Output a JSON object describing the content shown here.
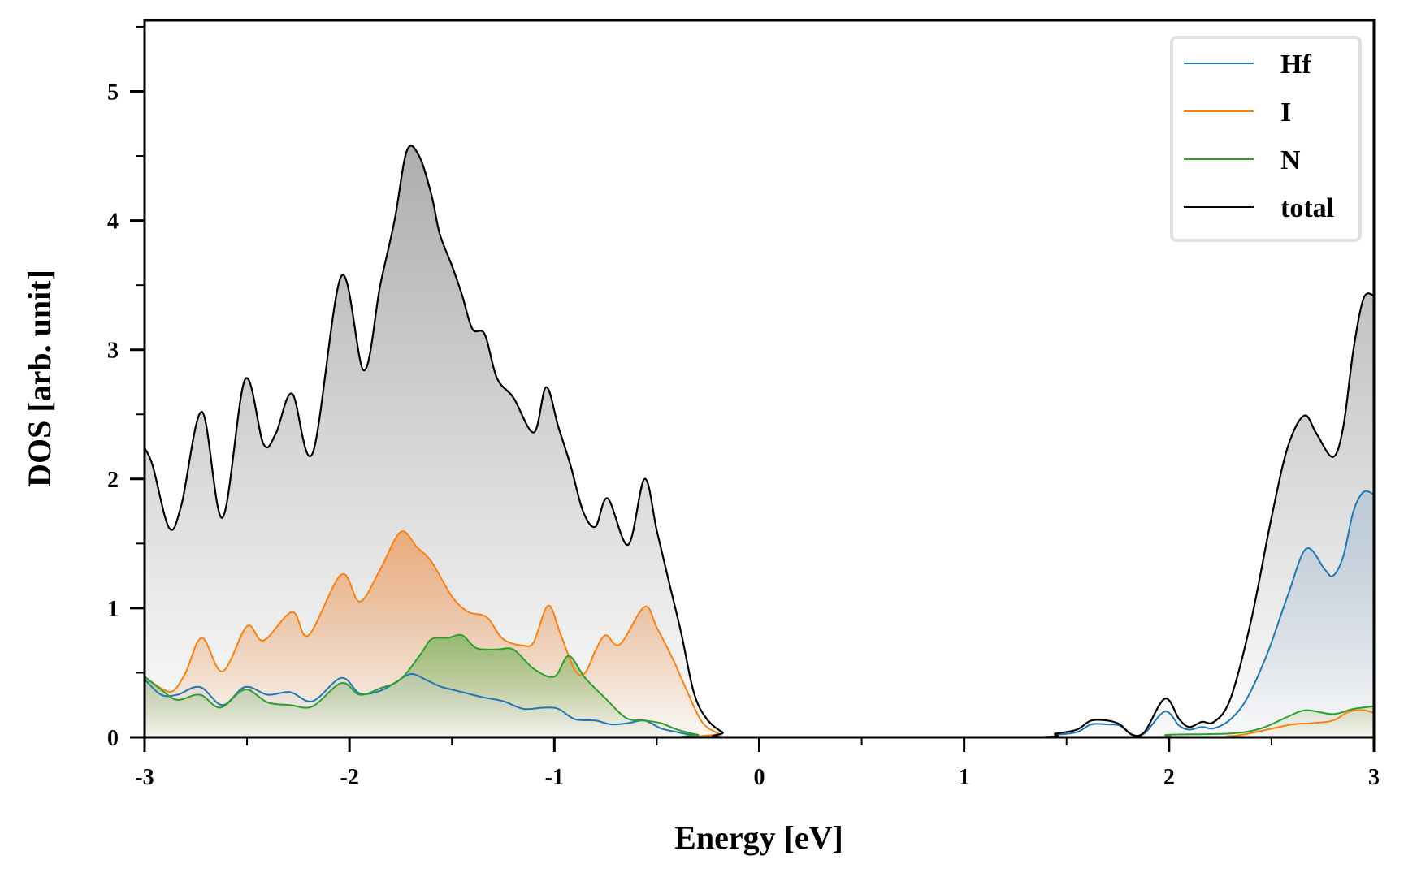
{
  "chart_data": {
    "type": "area",
    "title": "",
    "xlabel": "Energy [eV]",
    "ylabel": "DOS [arb. unit]",
    "xlim": [
      -3,
      3
    ],
    "ylim": [
      0,
      5.55
    ],
    "xticks": [
      -3,
      -2,
      -1,
      0,
      1,
      2,
      3
    ],
    "xtick_labels": [
      "-3",
      "-2",
      "-1",
      "0",
      "1",
      "2",
      "3"
    ],
    "xminor_ticks": [
      -2.5,
      -1.5,
      -0.5,
      0.5,
      1.5,
      2.5
    ],
    "yticks": [
      0,
      1,
      2,
      3,
      4,
      5
    ],
    "ytick_labels": [
      "0",
      "1",
      "2",
      "3",
      "4",
      "5"
    ],
    "yminor_ticks": [
      0.5,
      1.5,
      2.5,
      3.5,
      4.5,
      5.5
    ],
    "grid": false,
    "legend_position": "top-right",
    "series": [
      {
        "name": "Hf",
        "color": "#1f77b4",
        "fill": "#b8c8d8",
        "points": [
          [
            -3.0,
            0.45
          ],
          [
            -2.92,
            0.33
          ],
          [
            -2.84,
            0.33
          ],
          [
            -2.73,
            0.39
          ],
          [
            -2.62,
            0.25
          ],
          [
            -2.51,
            0.39
          ],
          [
            -2.4,
            0.33
          ],
          [
            -2.29,
            0.35
          ],
          [
            -2.18,
            0.28
          ],
          [
            -2.04,
            0.46
          ],
          [
            -1.95,
            0.34
          ],
          [
            -1.85,
            0.36
          ],
          [
            -1.78,
            0.42
          ],
          [
            -1.7,
            0.49
          ],
          [
            -1.62,
            0.44
          ],
          [
            -1.55,
            0.39
          ],
          [
            -1.45,
            0.35
          ],
          [
            -1.35,
            0.31
          ],
          [
            -1.25,
            0.28
          ],
          [
            -1.15,
            0.22
          ],
          [
            -1.05,
            0.23
          ],
          [
            -0.98,
            0.22
          ],
          [
            -0.9,
            0.14
          ],
          [
            -0.8,
            0.13
          ],
          [
            -0.72,
            0.1
          ],
          [
            -0.64,
            0.11
          ],
          [
            -0.56,
            0.13
          ],
          [
            -0.48,
            0.07
          ],
          [
            -0.4,
            0.04
          ],
          [
            -0.3,
            0.01
          ],
          [
            -0.2,
            0.0
          ],
          [
            1.3,
            0.0
          ],
          [
            1.45,
            0.02
          ],
          [
            1.55,
            0.04
          ],
          [
            1.62,
            0.1
          ],
          [
            1.7,
            0.1
          ],
          [
            1.76,
            0.09
          ],
          [
            1.82,
            0.02
          ],
          [
            1.88,
            0.03
          ],
          [
            1.98,
            0.2
          ],
          [
            2.05,
            0.09
          ],
          [
            2.1,
            0.06
          ],
          [
            2.16,
            0.08
          ],
          [
            2.22,
            0.07
          ],
          [
            2.3,
            0.14
          ],
          [
            2.38,
            0.3
          ],
          [
            2.48,
            0.65
          ],
          [
            2.58,
            1.1
          ],
          [
            2.67,
            1.46
          ],
          [
            2.76,
            1.3
          ],
          [
            2.8,
            1.25
          ],
          [
            2.85,
            1.4
          ],
          [
            2.9,
            1.75
          ],
          [
            2.95,
            1.9
          ],
          [
            3.0,
            1.88
          ]
        ]
      },
      {
        "name": "I",
        "color": "#ff7f0e",
        "fill": "#eca670",
        "points": [
          [
            -3.0,
            0.47
          ],
          [
            -2.92,
            0.38
          ],
          [
            -2.86,
            0.36
          ],
          [
            -2.8,
            0.5
          ],
          [
            -2.72,
            0.77
          ],
          [
            -2.62,
            0.51
          ],
          [
            -2.5,
            0.86
          ],
          [
            -2.42,
            0.75
          ],
          [
            -2.28,
            0.97
          ],
          [
            -2.2,
            0.79
          ],
          [
            -2.04,
            1.26
          ],
          [
            -1.95,
            1.05
          ],
          [
            -1.85,
            1.3
          ],
          [
            -1.75,
            1.59
          ],
          [
            -1.67,
            1.47
          ],
          [
            -1.6,
            1.36
          ],
          [
            -1.5,
            1.09
          ],
          [
            -1.42,
            0.97
          ],
          [
            -1.33,
            0.93
          ],
          [
            -1.25,
            0.76
          ],
          [
            -1.15,
            0.71
          ],
          [
            -1.1,
            0.74
          ],
          [
            -1.03,
            1.02
          ],
          [
            -0.97,
            0.8
          ],
          [
            -0.9,
            0.52
          ],
          [
            -0.85,
            0.5
          ],
          [
            -0.8,
            0.67
          ],
          [
            -0.75,
            0.79
          ],
          [
            -0.68,
            0.72
          ],
          [
            -0.56,
            1.01
          ],
          [
            -0.5,
            0.85
          ],
          [
            -0.42,
            0.6
          ],
          [
            -0.35,
            0.35
          ],
          [
            -0.28,
            0.12
          ],
          [
            -0.2,
            0.03
          ],
          [
            -0.12,
            0.0
          ],
          [
            2.0,
            0.0
          ],
          [
            2.3,
            0.01
          ],
          [
            2.45,
            0.05
          ],
          [
            2.6,
            0.1
          ],
          [
            2.7,
            0.11
          ],
          [
            2.8,
            0.13
          ],
          [
            2.88,
            0.2
          ],
          [
            2.95,
            0.21
          ],
          [
            3.0,
            0.19
          ]
        ]
      },
      {
        "name": "N",
        "color": "#2ca02c",
        "fill": "#8bb86a",
        "points": [
          [
            -3.0,
            0.47
          ],
          [
            -2.92,
            0.37
          ],
          [
            -2.84,
            0.29
          ],
          [
            -2.73,
            0.33
          ],
          [
            -2.63,
            0.23
          ],
          [
            -2.51,
            0.37
          ],
          [
            -2.4,
            0.27
          ],
          [
            -2.29,
            0.25
          ],
          [
            -2.18,
            0.24
          ],
          [
            -2.04,
            0.42
          ],
          [
            -1.95,
            0.33
          ],
          [
            -1.85,
            0.38
          ],
          [
            -1.75,
            0.45
          ],
          [
            -1.65,
            0.65
          ],
          [
            -1.6,
            0.76
          ],
          [
            -1.52,
            0.77
          ],
          [
            -1.45,
            0.79
          ],
          [
            -1.38,
            0.69
          ],
          [
            -1.28,
            0.68
          ],
          [
            -1.2,
            0.68
          ],
          [
            -1.1,
            0.53
          ],
          [
            -1.0,
            0.47
          ],
          [
            -0.93,
            0.63
          ],
          [
            -0.85,
            0.46
          ],
          [
            -0.75,
            0.3
          ],
          [
            -0.65,
            0.15
          ],
          [
            -0.56,
            0.13
          ],
          [
            -0.48,
            0.11
          ],
          [
            -0.4,
            0.06
          ],
          [
            -0.3,
            0.02
          ],
          [
            -0.2,
            0.0
          ],
          [
            1.8,
            0.0
          ],
          [
            2.0,
            0.02
          ],
          [
            2.3,
            0.03
          ],
          [
            2.45,
            0.07
          ],
          [
            2.58,
            0.16
          ],
          [
            2.67,
            0.21
          ],
          [
            2.8,
            0.18
          ],
          [
            2.9,
            0.22
          ],
          [
            3.0,
            0.24
          ]
        ]
      },
      {
        "name": "total",
        "color": "#000000",
        "fill": "#aaaaaa",
        "points": [
          [
            -3.0,
            2.24
          ],
          [
            -2.96,
            2.1
          ],
          [
            -2.88,
            1.62
          ],
          [
            -2.82,
            1.8
          ],
          [
            -2.72,
            2.52
          ],
          [
            -2.62,
            1.7
          ],
          [
            -2.51,
            2.77
          ],
          [
            -2.42,
            2.27
          ],
          [
            -2.36,
            2.35
          ],
          [
            -2.28,
            2.66
          ],
          [
            -2.18,
            2.2
          ],
          [
            -2.04,
            3.57
          ],
          [
            -1.93,
            2.84
          ],
          [
            -1.85,
            3.5
          ],
          [
            -1.78,
            4.0
          ],
          [
            -1.72,
            4.54
          ],
          [
            -1.66,
            4.5
          ],
          [
            -1.6,
            4.2
          ],
          [
            -1.56,
            3.9
          ],
          [
            -1.5,
            3.65
          ],
          [
            -1.45,
            3.42
          ],
          [
            -1.4,
            3.16
          ],
          [
            -1.34,
            3.12
          ],
          [
            -1.28,
            2.78
          ],
          [
            -1.2,
            2.63
          ],
          [
            -1.1,
            2.36
          ],
          [
            -1.04,
            2.71
          ],
          [
            -0.98,
            2.4
          ],
          [
            -0.92,
            2.1
          ],
          [
            -0.86,
            1.75
          ],
          [
            -0.8,
            1.63
          ],
          [
            -0.74,
            1.85
          ],
          [
            -0.64,
            1.49
          ],
          [
            -0.56,
            2.0
          ],
          [
            -0.5,
            1.6
          ],
          [
            -0.44,
            1.2
          ],
          [
            -0.38,
            0.8
          ],
          [
            -0.32,
            0.35
          ],
          [
            -0.26,
            0.15
          ],
          [
            -0.18,
            0.04
          ],
          [
            -0.1,
            0.0
          ],
          [
            1.3,
            0.0
          ],
          [
            1.45,
            0.03
          ],
          [
            1.55,
            0.06
          ],
          [
            1.62,
            0.13
          ],
          [
            1.7,
            0.13
          ],
          [
            1.76,
            0.1
          ],
          [
            1.82,
            0.02
          ],
          [
            1.88,
            0.04
          ],
          [
            1.98,
            0.3
          ],
          [
            2.05,
            0.14
          ],
          [
            2.1,
            0.08
          ],
          [
            2.16,
            0.12
          ],
          [
            2.22,
            0.12
          ],
          [
            2.3,
            0.3
          ],
          [
            2.4,
            0.9
          ],
          [
            2.5,
            1.7
          ],
          [
            2.58,
            2.25
          ],
          [
            2.66,
            2.49
          ],
          [
            2.72,
            2.35
          ],
          [
            2.8,
            2.17
          ],
          [
            2.85,
            2.4
          ],
          [
            2.9,
            3.0
          ],
          [
            2.95,
            3.4
          ],
          [
            3.0,
            3.42
          ]
        ]
      }
    ]
  }
}
